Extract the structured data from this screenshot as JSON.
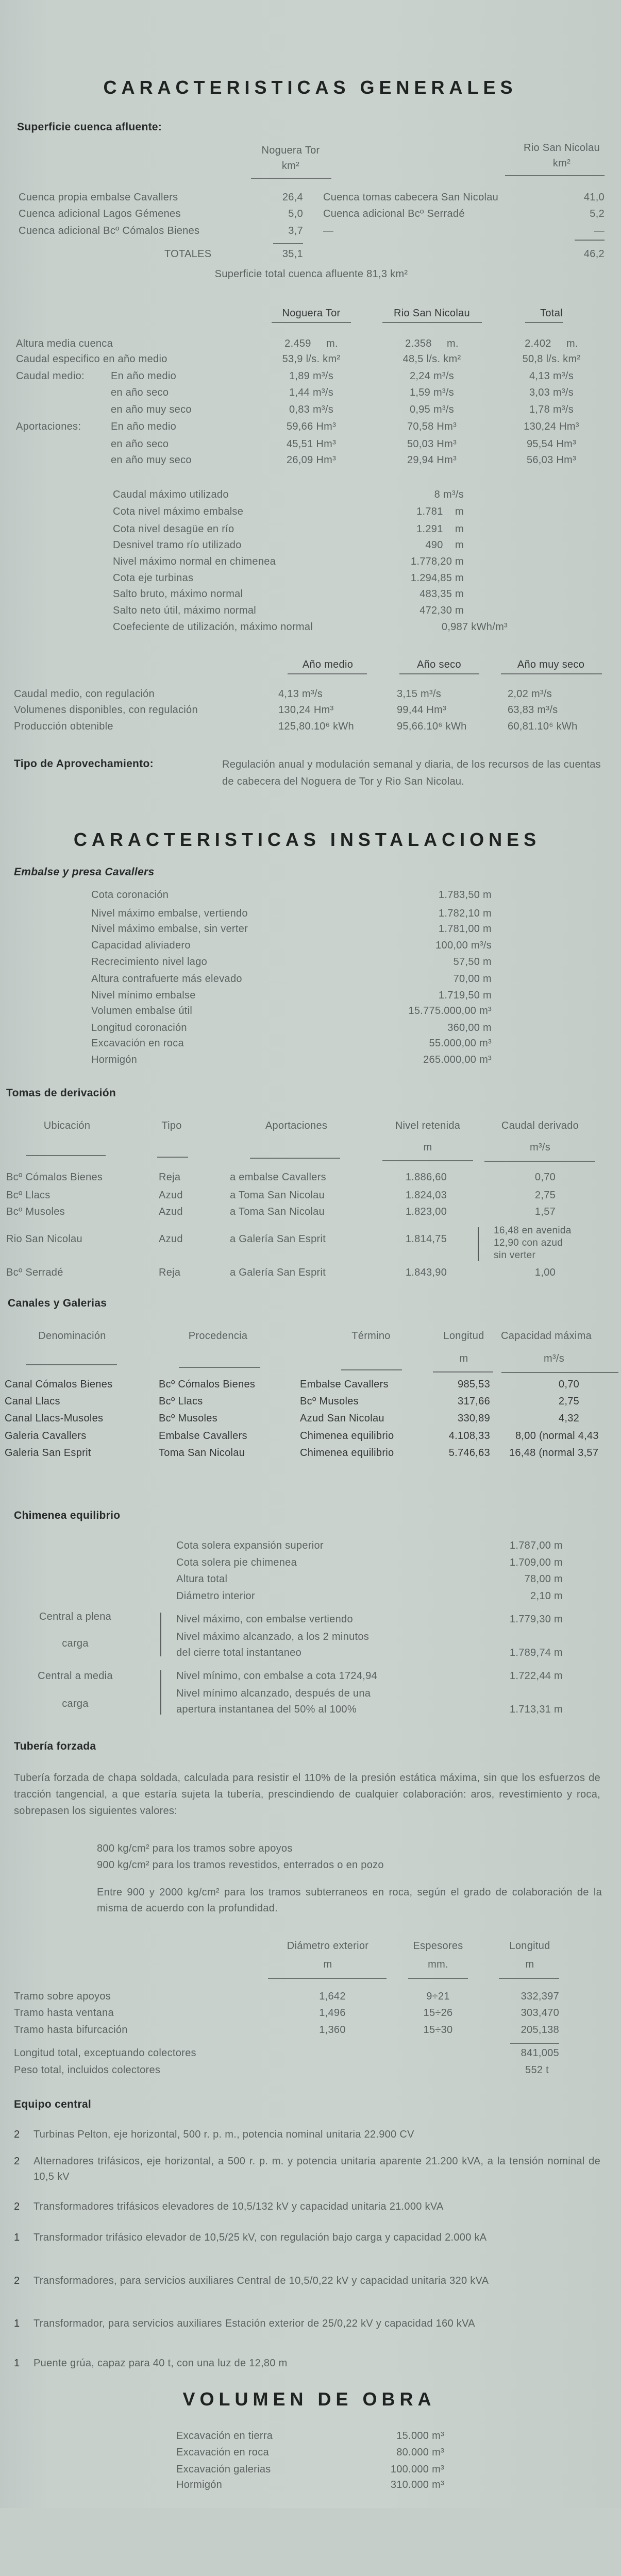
{
  "general": {
    "title": "CARACTERISTICAS GENERALES",
    "cuenca": {
      "heading": "Superficie cuenca afluente:",
      "col_left": "Noguera Tor",
      "col_left_unit": "km²",
      "col_right": "Rio San Nicolau",
      "col_right_unit": "km²",
      "rows": [
        {
          "left_label": "Cuenca propia embalse Cavallers",
          "left_value": "26,4",
          "right_label": "Cuenca tomas cabecera San Nicolau",
          "right_value": "41,0"
        },
        {
          "left_label": "Cuenca adicional Lagos Gémenes",
          "left_value": "5,0",
          "right_label": "Cuenca adicional Bcº Serradé",
          "right_value": "5,2"
        },
        {
          "left_label": "Cuenca adicional Bcº Cómalos Bienes",
          "left_value": "3,7",
          "right_label": "—",
          "right_value": "—"
        }
      ],
      "totals_label": "TOTALES",
      "total_left": "35,1",
      "total_right": "46,2",
      "total_note": "Superficie total cuenca afluente 81,3 km²"
    },
    "hydrology": {
      "headers": [
        "Noguera Tor",
        "Rio San Nicolau",
        "Total"
      ],
      "rows": [
        {
          "label": "Altura media cuenca",
          "sub": "",
          "values": [
            "2.459     m.",
            "2.358     m.",
            "2.402     m."
          ]
        },
        {
          "label": "Caudal especifico en año medio",
          "sub": "",
          "values": [
            "53,9 l/s. km²",
            "48,5 l/s. km²",
            "50,8 l/s. km²"
          ]
        },
        {
          "label": "Caudal medio:",
          "sub": "En año medio",
          "values": [
            "1,89 m³/s",
            "2,24 m³/s",
            "4,13 m³/s"
          ]
        },
        {
          "label": "",
          "sub": "en año seco",
          "values": [
            "1,44 m³/s",
            "1,59 m³/s",
            "3,03 m³/s"
          ]
        },
        {
          "label": "",
          "sub": "en año muy seco",
          "values": [
            "0,83 m³/s",
            "0,95 m³/s",
            "1,78 m³/s"
          ]
        },
        {
          "label": "Aportaciones:",
          "sub": "En año medio",
          "values": [
            "59,66 Hm³",
            "70,58 Hm³",
            "130,24 Hm³"
          ]
        },
        {
          "label": "",
          "sub": "en año seco",
          "values": [
            "45,51 Hm³",
            "50,03 Hm³",
            "95,54 Hm³"
          ]
        },
        {
          "label": "",
          "sub": "en año muy seco",
          "values": [
            "26,09 Hm³",
            "29,94 Hm³",
            "56,03 Hm³"
          ]
        }
      ]
    },
    "parameters": [
      {
        "label": "Caudal máximo utilizado",
        "value": "8 m³/s"
      },
      {
        "label": "Cota nivel máximo embalse",
        "value": "1.781    m"
      },
      {
        "label": "Cota nivel desagüe en río",
        "value": "1.291    m"
      },
      {
        "label": "Desnivel tramo río utilizado",
        "value": "490    m"
      },
      {
        "label": "Nivel máximo normal en chimenea",
        "value": "1.778,20 m"
      },
      {
        "label": "Cota eje turbinas",
        "value": "1.294,85 m"
      },
      {
        "label": "Salto bruto, máximo normal",
        "value": "483,35 m"
      },
      {
        "label": "Salto neto útil, máximo normal",
        "value": "472,30 m"
      },
      {
        "label": "Coefeciente de utilización, máximo normal",
        "value": "0,987 kWh/m³"
      }
    ],
    "regulation": {
      "headers": [
        "Año medio",
        "Año seco",
        "Año muy seco"
      ],
      "rows": [
        {
          "label": "Caudal medio, con regulación",
          "values": [
            "4,13 m³/s",
            "3,15 m³/s",
            "2,02 m³/s"
          ]
        },
        {
          "label": "Volumenes disponibles, con regulación",
          "values": [
            "130,24 Hm³",
            "99,44 Hm³",
            "63,83 m³/s"
          ]
        },
        {
          "label": "Producción obtenible",
          "values": [
            "125,80.10⁶ kWh",
            "95,66.10⁶ kWh",
            "60,81.10⁶ kWh"
          ]
        }
      ]
    },
    "tipo": {
      "label": "Tipo de Aprovechamiento:",
      "text": "Regulación anual y modulación semanal y diaria, de los recursos de las cuentas de cabecera del Noguera de Tor y Rio San Nicolau."
    }
  },
  "instalaciones": {
    "title": "CARACTERISTICAS INSTALACIONES",
    "embalse": {
      "heading": "Embalse y presa Cavallers",
      "items": [
        {
          "label": "Cota coronación",
          "value": "1.783,50 m"
        },
        {
          "label": "Nivel máximo embalse, vertiendo",
          "value": "1.782,10 m"
        },
        {
          "label": "Nivel máximo embalse, sin verter",
          "value": "1.781,00 m"
        },
        {
          "label": "Capacidad aliviadero",
          "value": "100,00 m³/s"
        },
        {
          "label": "Recrecimiento nivel lago",
          "value": "57,50 m"
        },
        {
          "label": "Altura contrafuerte más elevado",
          "value": "70,00 m"
        },
        {
          "label": "Nivel mínimo embalse",
          "value": "1.719,50 m"
        },
        {
          "label": "Volumen embalse útil",
          "value": "15.775.000,00 m³"
        },
        {
          "label": "Longitud coronación",
          "value": "360,00 m"
        },
        {
          "label": "Excavación en roca",
          "value": "55.000,00 m³"
        },
        {
          "label": "Hormigón",
          "value": "265.000,00 m³"
        }
      ]
    },
    "tomas": {
      "heading": "Tomas de derivación",
      "headers": [
        "Ubicación",
        "Tipo",
        "Aportaciones",
        "Nivel retenida",
        "Caudal derivado"
      ],
      "units": {
        "nivel": "m",
        "caudal": "m³/s"
      },
      "rows": [
        {
          "ubicacion": "Bcº Cómalos Bienes",
          "tipo": "Reja",
          "aportaciones": "a embalse Cavallers",
          "nivel": "1.886,60",
          "caudal": "0,70"
        },
        {
          "ubicacion": "Bcº Llacs",
          "tipo": "Azud",
          "aportaciones": "a Toma San Nicolau",
          "nivel": "1.824,03",
          "caudal": "2,75"
        },
        {
          "ubicacion": "Bcº Musoles",
          "tipo": "Azud",
          "aportaciones": "a Toma San Nicolau",
          "nivel": "1.823,00",
          "caudal": "1,57"
        },
        {
          "ubicacion": "Rio San Nicolau",
          "tipo": "Azud",
          "aportaciones": "a Galería San Esprit",
          "nivel": "1.814,75",
          "caudal_lines": [
            "16,48 en avenida",
            "12,90 con azud",
            "sin verter"
          ]
        },
        {
          "ubicacion": "Bcº Serradé",
          "tipo": "Reja",
          "aportaciones": "a Galería San Esprit",
          "nivel": "1.843,90",
          "caudal": "1,00"
        }
      ]
    },
    "canales": {
      "heading": "Canales y Galerias",
      "headers": [
        "Denominación",
        "Procedencia",
        "Término",
        "Longitud",
        "Capacidad máxima"
      ],
      "units": {
        "longitud": "m",
        "capacidad": "m³/s"
      },
      "rows": [
        {
          "denominacion": "Canal Cómalos Bienes",
          "procedencia": "Bcº Cómalos Bienes",
          "termino": "Embalse Cavallers",
          "longitud": "985,53",
          "capacidad": "0,70"
        },
        {
          "denominacion": "Canal Llacs",
          "procedencia": "Bcº Llacs",
          "termino": "Bcº Musoles",
          "longitud": "317,66",
          "capacidad": "2,75"
        },
        {
          "denominacion": "Canal Llacs-Musoles",
          "procedencia": "Bcº Musoles",
          "termino": "Azud San Nicolau",
          "longitud": "330,89",
          "capacidad": "4,32"
        },
        {
          "denominacion": "Galeria Cavallers",
          "procedencia": "Embalse Cavallers",
          "termino": "Chimenea equilibrio",
          "longitud": "4.108,33",
          "capacidad": "8,00 (normal 4,43"
        },
        {
          "denominacion": "Galeria San Esprit",
          "procedencia": "Toma San Nicolau",
          "termino": "Chimenea equilibrio",
          "longitud": "5.746,63",
          "capacidad": "16,48 (normal 3,57"
        }
      ]
    },
    "chimenea": {
      "heading": "Chimenea equilibrio",
      "items": [
        {
          "label": "Cota solera expansión superior",
          "value": "1.787,00 m"
        },
        {
          "label": "Cota solera pie chimenea",
          "value": "1.709,00 m"
        },
        {
          "label": "Altura total",
          "value": "78,00 m"
        },
        {
          "label": "Diámetro interior",
          "value": "2,10 m"
        }
      ],
      "plena": {
        "label_line1": "Central a plena",
        "label_line2": "carga",
        "items": [
          {
            "text": "Nivel máximo, con embalse vertiendo",
            "value": "1.779,30 m"
          },
          {
            "text": "Nivel máximo alcanzado, a los 2 minutos",
            "value": ""
          },
          {
            "text": "del cierre total instantaneo",
            "value": "1.789,74 m"
          }
        ]
      },
      "media": {
        "label_line1": "Central a media",
        "label_line2": "carga",
        "items": [
          {
            "text": "Nivel mínimo, con embalse a cota 1724,94",
            "value": "1.722,44 m"
          },
          {
            "text": "Nivel mínimo alcanzado, después de una",
            "value": ""
          },
          {
            "text": "apertura instantanea del 50% al 100%",
            "value": "1.713,31 m"
          }
        ]
      }
    },
    "tuberia": {
      "heading": "Tubería forzada",
      "paragraph": "Tubería forzada de chapa soldada, calculada para resistir el 110% de la presión estática máxima, sin que los esfuerzos de tracción tangencial, a que estaría sujeta la tubería, prescindiendo de cualquier colaboración: aros, revestimiento y roca, sobrepasen los siguientes valores:",
      "limits": [
        "800 kg/cm² para los tramos sobre apoyos",
        "900 kg/cm² para los tramos revestidos, enterrados o en pozo"
      ],
      "limit_rock": "Entre 900 y 2000 kg/cm² para los tramos subterraneos en roca, según el grado de colaboración de la misma de acuerdo con la profundidad.",
      "headers": [
        {
          "name": "Diámetro exterior",
          "unit": "m"
        },
        {
          "name": "Espesores",
          "unit": "mm."
        },
        {
          "name": "Longitud",
          "unit": "m"
        }
      ],
      "rows": [
        {
          "label": "Tramo sobre apoyos",
          "values": [
            "1,642",
            "9÷21",
            "332,397"
          ]
        },
        {
          "label": "Tramo hasta ventana",
          "values": [
            "1,496",
            "15÷26",
            "303,470"
          ]
        },
        {
          "label": "Tramo hasta bifurcación",
          "values": [
            "1,360",
            "15÷30",
            "205,138"
          ]
        }
      ],
      "total_length": {
        "label": "Longitud total, exceptuando colectores",
        "value": "841,005"
      },
      "total_weight": {
        "label": "Peso total, incluidos colectores",
        "value": "552 t"
      }
    },
    "equipo": {
      "heading": "Equipo central",
      "items": [
        {
          "qty": "2",
          "text": "Turbinas Pelton, eje horizontal, 500 r. p. m., potencia nominal unitaria 22.900 CV"
        },
        {
          "qty": "2",
          "text": "Alternadores trifásicos, eje horizontal, a 500 r. p. m. y potencia unitaria aparente 21.200 kVA, a la tensión nominal de 10,5 kV"
        },
        {
          "qty": "2",
          "text": "Transformadores trifásicos elevadores de 10,5/132 kV y capacidad unitaria 21.000 kVA"
        },
        {
          "qty": "1",
          "text": "Transformador trifásico elevador de 10,5/25 kV, con regulación bajo carga y capacidad 2.000 kA"
        },
        {
          "qty": "2",
          "text": "Transformadores, para servicios auxiliares Central de 10,5/0,22 kV y capacidad unitaria 320 kVA"
        },
        {
          "qty": "1",
          "text": "Transformador, para servicios auxiliares Estación exterior de 25/0,22 kV y capacidad 160 kVA"
        },
        {
          "qty": "1",
          "text": "Puente grúa, capaz para 40 t, con una luz de 12,80 m"
        }
      ]
    }
  },
  "volumen": {
    "title": "VOLUMEN DE OBRA",
    "items": [
      {
        "label": "Excavación en tierra",
        "value": "15.000 m³"
      },
      {
        "label": "Excavación en roca",
        "value": "80.000 m³"
      },
      {
        "label": "Excavación galerias",
        "value": "100.000 m³"
      },
      {
        "label": "Hormigón",
        "value": "310.000 m³"
      }
    ]
  }
}
